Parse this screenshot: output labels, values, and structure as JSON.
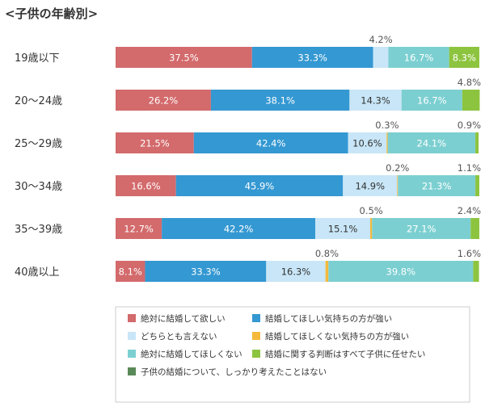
{
  "chart_data": {
    "type": "bar",
    "orientation": "horizontal",
    "stacked": true,
    "percent": true,
    "title": "<子供の年齢別>",
    "categories": [
      "19歳以下",
      "20〜24歳",
      "25〜29歳",
      "30〜34歳",
      "35〜39歳",
      "40歳以上"
    ],
    "series": [
      {
        "name": "絶対に結婚して欲しい",
        "color": "#d36a6c",
        "values": [
          37.5,
          26.2,
          21.5,
          16.6,
          12.7,
          8.1
        ],
        "labels": [
          "37.5%",
          "26.2%",
          "21.5%",
          "16.6%",
          "12.7%",
          "8.1%"
        ]
      },
      {
        "name": "結婚してほしい気持ちの方が強い",
        "color": "#3498d2",
        "values": [
          33.3,
          38.1,
          42.4,
          45.9,
          42.2,
          33.3
        ],
        "labels": [
          "33.3%",
          "38.1%",
          "42.4%",
          "45.9%",
          "42.2%",
          "33.3%"
        ]
      },
      {
        "name": "どちらとも言えない",
        "color": "#c8e6f7",
        "values": [
          4.2,
          14.3,
          10.6,
          14.9,
          15.1,
          16.3
        ],
        "labels": [
          "4.2%",
          "14.3%",
          "10.6%",
          "14.9%",
          "15.1%",
          "16.3%"
        ]
      },
      {
        "name": "結婚してほしくない気持ちの方が強い",
        "color": "#f5b93c",
        "values": [
          0,
          0,
          0.3,
          0.2,
          0.5,
          0.8
        ],
        "labels": [
          "",
          "",
          "0.3%",
          "0.2%",
          "0.5%",
          "0.8%"
        ]
      },
      {
        "name": "絶対に結婚してほしくない",
        "color": "#7ccfd1",
        "values": [
          16.7,
          16.7,
          24.1,
          21.3,
          27.1,
          39.8
        ],
        "labels": [
          "16.7%",
          "16.7%",
          "24.1%",
          "21.3%",
          "27.1%",
          "39.8%"
        ]
      },
      {
        "name": "結婚に関する判断はすべて子供に任せたい",
        "color": "#8dc43f",
        "values": [
          8.3,
          4.8,
          0.9,
          1.1,
          2.4,
          1.6
        ],
        "labels": [
          "8.3%",
          "4.8%",
          "0.9%",
          "1.1%",
          "2.4%",
          "1.6%"
        ]
      },
      {
        "name": "子供の結婚について、しっかり考えたことはない",
        "color": "#5a8a58",
        "values": [
          0,
          0,
          0,
          0,
          0,
          0
        ],
        "labels": [
          "",
          "",
          "",
          "",
          "",
          ""
        ]
      }
    ],
    "xlim": [
      0,
      100
    ],
    "grid": false,
    "legend_position": "bottom"
  }
}
